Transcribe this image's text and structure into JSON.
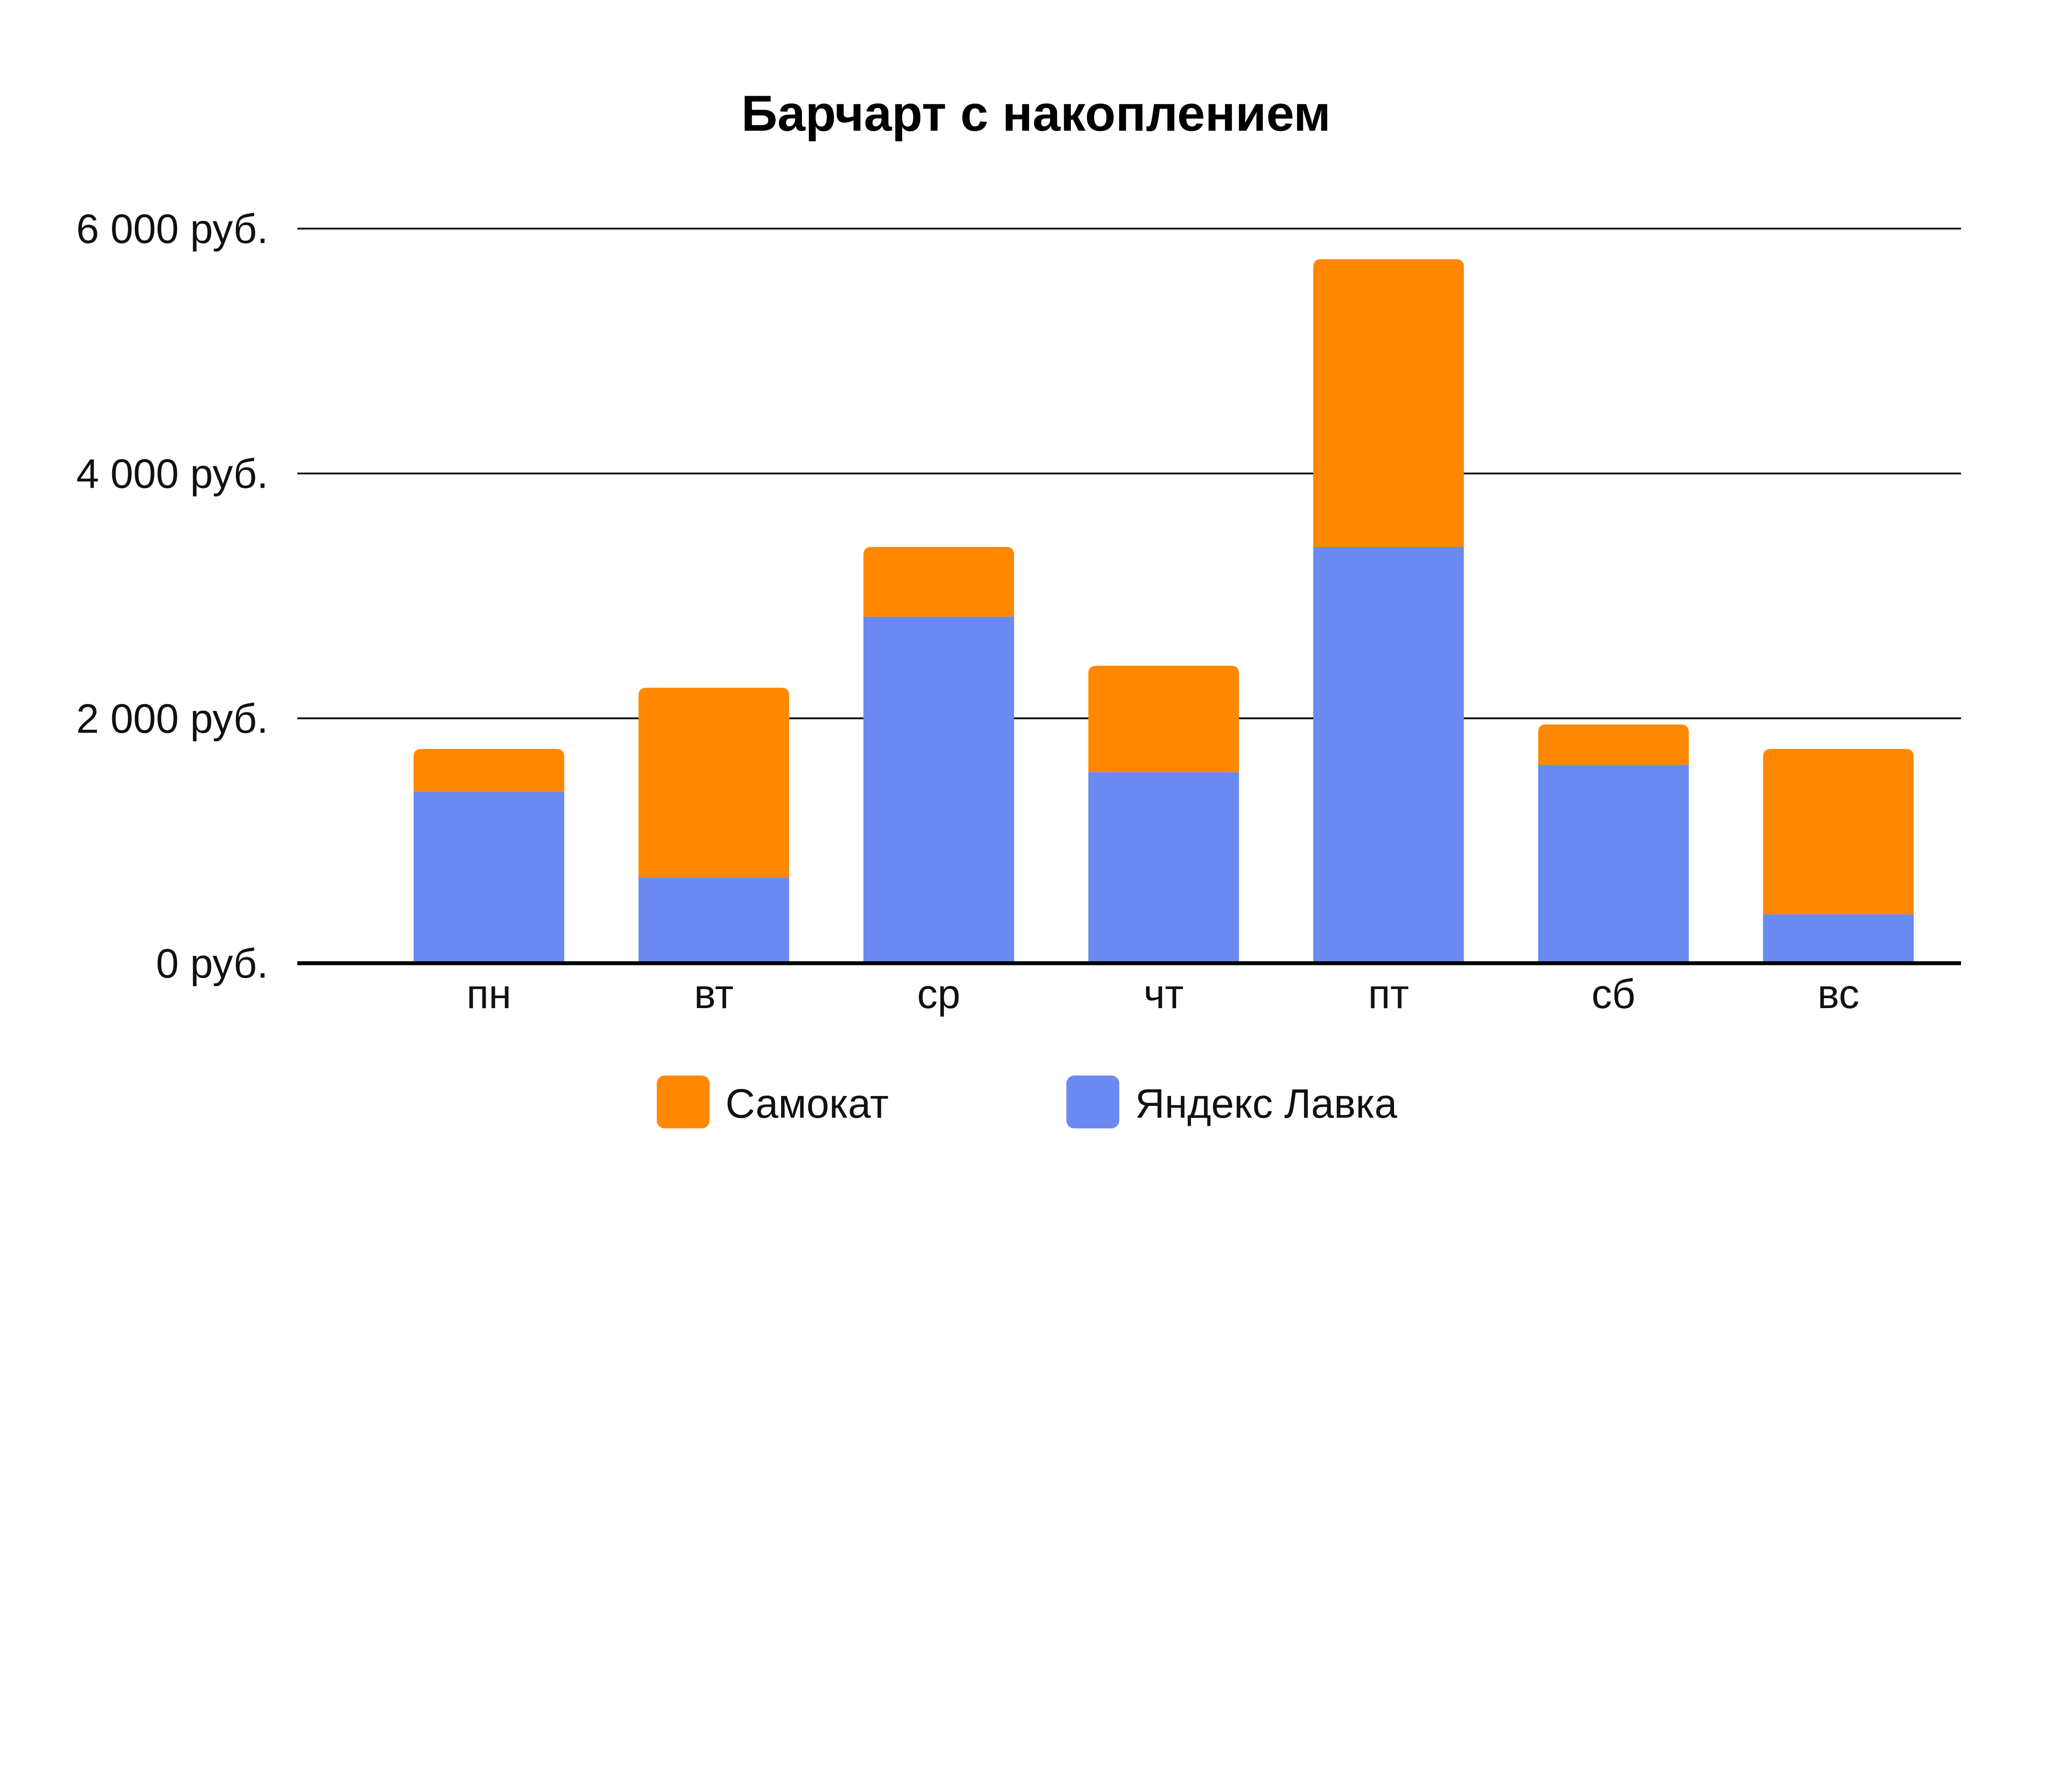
{
  "chart_data": {
    "type": "bar",
    "stacked": true,
    "title": "Барчарт с накоплением",
    "xlabel": "",
    "ylabel": "",
    "categories": [
      "пн",
      "вт",
      "ср",
      "чт",
      "пт",
      "сб",
      "вс"
    ],
    "series": [
      {
        "name": "Яндекс Лавка",
        "color": "#6a89f1",
        "values": [
          1400,
          700,
          2830,
          1560,
          3400,
          1620,
          400
        ]
      },
      {
        "name": "Самокат",
        "color": "#ff8800",
        "values": [
          350,
          1550,
          570,
          870,
          2350,
          330,
          1350
        ]
      }
    ],
    "ylim": [
      0,
      6000
    ],
    "yticks": [
      0,
      2000,
      4000,
      6000
    ],
    "ytick_labels": [
      "0 руб.",
      "2 000 руб.",
      "4 000 руб.",
      "6 000 руб."
    ],
    "grid": true,
    "legend_position": "bottom",
    "legend_order": [
      "Самокат",
      "Яндекс Лавка"
    ]
  }
}
